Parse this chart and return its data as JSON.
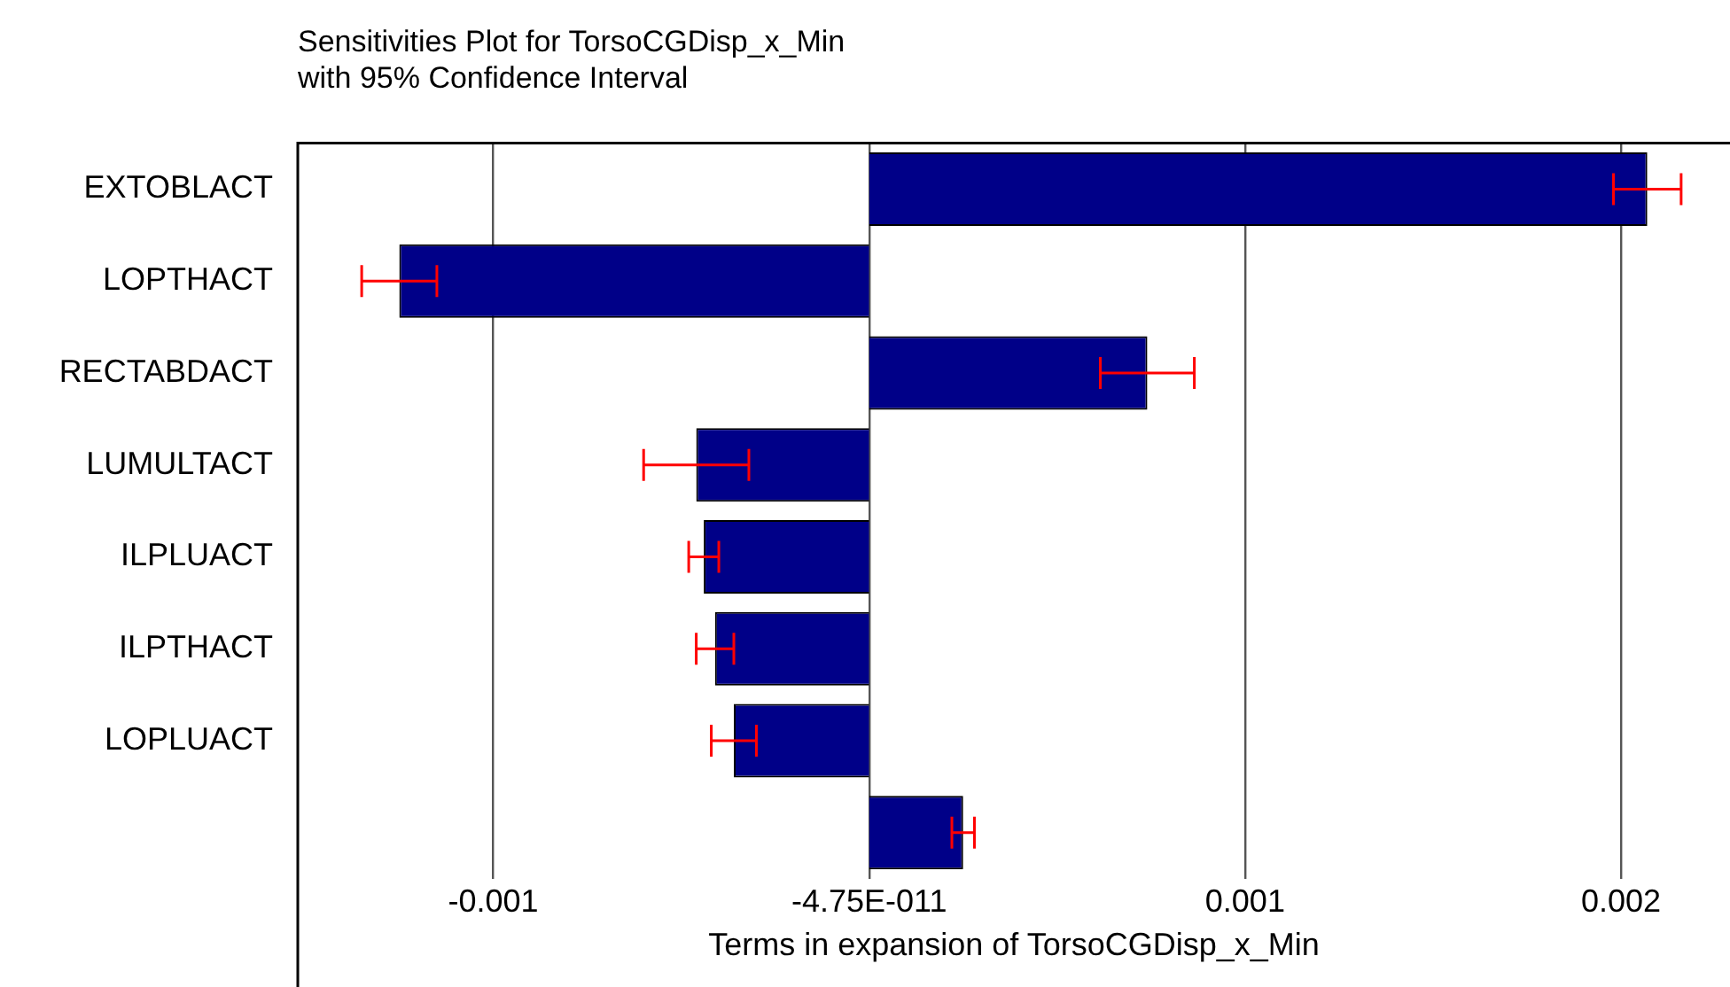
{
  "chart_data": {
    "type": "bar",
    "orientation": "horizontal",
    "title": "Sensitivities Plot for TorsoCGDisp_x_Min\nwith 95% Confidence Interval",
    "xlabel": "Terms in expansion of TorsoCGDisp_x_Min",
    "categories": [
      "EXTOBLACT",
      "LOPTHACT",
      "RECTABDACT",
      "LUMULTACT",
      "ILPLUACT",
      "ILPTHACT",
      "LOPLUACT",
      null
    ],
    "values": [
      0.00207,
      -0.00125,
      0.00074,
      -0.00046,
      -0.00044,
      -0.00041,
      -0.00036,
      0.00025
    ],
    "errors": [
      9e-05,
      0.0001,
      0.000125,
      0.00014,
      4e-05,
      5e-05,
      6e-05,
      3e-05
    ],
    "color": "#000088",
    "xlim": [
      -0.00152,
      0.00229
    ],
    "xticks": [
      -0.001,
      {
        "value": -4.75e-11,
        "label": "-4.75E-011"
      },
      0.001,
      0.002
    ],
    "grid": "x",
    "legend": false
  }
}
